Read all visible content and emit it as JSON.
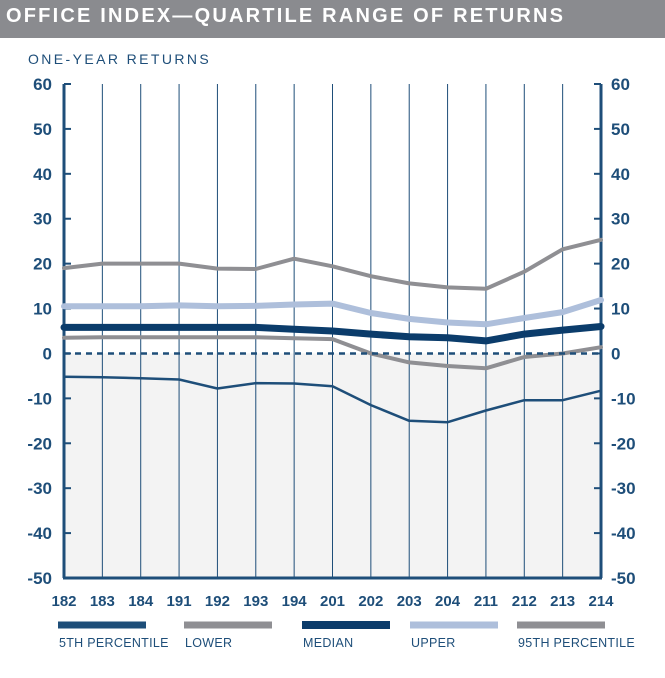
{
  "header": {
    "title": "OFFICE INDEX—QUARTILE RANGE OF RETURNS",
    "subtitle": "ONE-YEAR RETURNS"
  },
  "colors": {
    "title_bar": "#8a8b8f",
    "axis": "#1e4e79",
    "p5": "#1e4e79",
    "lower": "#8f8f93",
    "median": "#0b3c6b",
    "upper": "#aebfdb",
    "p95": "#8f8f93",
    "shade": "#f3f3f3"
  },
  "chart_data": {
    "type": "line",
    "title": "OFFICE INDEX—QUARTILE RANGE OF RETURNS",
    "ylabel": "ONE-YEAR RETURNS",
    "xlabel": "",
    "categories": [
      "182",
      "183",
      "184",
      "191",
      "192",
      "193",
      "194",
      "201",
      "202",
      "203",
      "204",
      "211",
      "212",
      "213",
      "214"
    ],
    "ylim": [
      -50,
      60
    ],
    "yticks": [
      60,
      50,
      40,
      30,
      20,
      10,
      0,
      -10,
      -20,
      -30,
      -40,
      -50
    ],
    "grid": "vertical",
    "zero_line": "dashed",
    "legend_position": "bottom",
    "series": [
      {
        "name": "5TH PERCENTILE",
        "key": "p5",
        "values": [
          -5.2,
          -5.3,
          -5.5,
          -5.8,
          -7.8,
          -6.6,
          -6.7,
          -7.3,
          -11.5,
          -15.0,
          -15.3,
          -12.7,
          -10.4,
          -10.4,
          -8.3
        ]
      },
      {
        "name": "LOWER",
        "key": "lower",
        "values": [
          3.5,
          3.6,
          3.6,
          3.6,
          3.6,
          3.6,
          3.4,
          3.2,
          0.0,
          -2.0,
          -2.8,
          -3.3,
          -0.8,
          0.0,
          1.4
        ]
      },
      {
        "name": "MEDIAN",
        "key": "median",
        "values": [
          5.8,
          5.8,
          5.8,
          5.8,
          5.8,
          5.8,
          5.4,
          5.0,
          4.3,
          3.7,
          3.5,
          2.8,
          4.3,
          5.2,
          6.0
        ]
      },
      {
        "name": "UPPER",
        "key": "upper",
        "values": [
          10.5,
          10.5,
          10.5,
          10.7,
          10.5,
          10.6,
          10.9,
          11.1,
          9.0,
          7.7,
          6.9,
          6.5,
          7.9,
          9.2,
          11.9
        ]
      },
      {
        "name": "95TH PERCENTILE",
        "key": "p95",
        "values": [
          19.0,
          20.0,
          20.0,
          20.0,
          18.9,
          18.8,
          21.1,
          19.4,
          17.2,
          15.6,
          14.7,
          14.4,
          18.2,
          23.2,
          25.3
        ]
      }
    ]
  }
}
